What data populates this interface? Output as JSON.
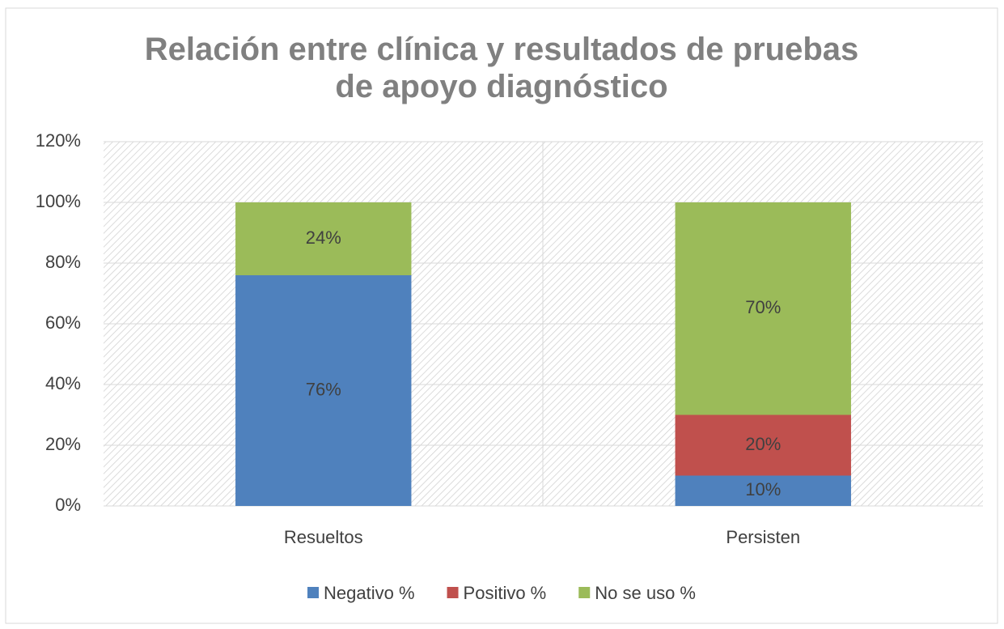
{
  "chart_data": {
    "type": "stacked_bar",
    "title": "Relación entre clínica y resultados de pruebas de apoyo diagnóstico",
    "categories": [
      "Resueltos",
      "Persisten"
    ],
    "series": [
      {
        "name": "Negativo %",
        "color": "#4f81bd",
        "values": [
          76,
          10
        ],
        "value_labels": [
          "76%",
          "10%"
        ]
      },
      {
        "name": "Positivo %",
        "color": "#c0504d",
        "values": [
          null,
          20
        ],
        "value_labels": [
          null,
          "20%"
        ]
      },
      {
        "name": "No se uso %",
        "color": "#9bbb59",
        "values": [
          24,
          70
        ],
        "value_labels": [
          "24%",
          "70%"
        ]
      }
    ],
    "ylim": [
      0,
      120
    ],
    "yticks": [
      {
        "value": 0,
        "label": "0%"
      },
      {
        "value": 20,
        "label": "20%"
      },
      {
        "value": 40,
        "label": "40%"
      },
      {
        "value": 60,
        "label": "60%"
      },
      {
        "value": 80,
        "label": "80%"
      },
      {
        "value": 100,
        "label": "100%"
      },
      {
        "value": 120,
        "label": "120%"
      }
    ],
    "grid": true,
    "legend": "bottom"
  }
}
